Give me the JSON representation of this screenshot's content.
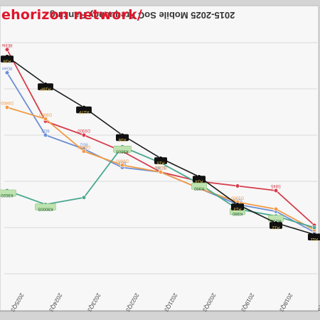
{
  "watermark": "ehorizon network/",
  "chart_data": {
    "type": "line",
    "title": "2015-2025 Mobile SoC Frequency Ranking",
    "categories": [
      "2025Q3",
      "2024Q3",
      "2023Q3",
      "2022Q3",
      "2021Q3",
      "2020Q3",
      "2019Q3",
      "2018Q3",
      "2017Q3"
    ],
    "ylim": [
      0,
      1
    ],
    "grid": true,
    "legend": "none",
    "series": [
      {
        "color": "#d63b4a",
        "values": [
          0.97,
          0.66,
          0.6,
          0.53,
          0.44,
          0.4,
          0.38,
          0.36,
          0.21
        ],
        "point_labels": [
          "8Elite",
          "",
          "D9300",
          "",
          "",
          "",
          "",
          "S845",
          ""
        ]
      },
      {
        "color": "#6c8fd4",
        "values": [
          0.87,
          0.6,
          0.54,
          0.46,
          0.44,
          0.37,
          0.3,
          0.27,
          0.18
        ],
        "point_labels": [
          "8Gen",
          "8G2",
          "8G2",
          "8G1",
          "SD88",
          "",
          "S855",
          "",
          ""
        ]
      },
      {
        "color": "#f29b45",
        "values": [
          0.72,
          0.67,
          0.53,
          0.47,
          0.44,
          0.37,
          0.31,
          0.28,
          0.19
        ],
        "point_labels": [
          "D9400",
          "D9000",
          "D9000",
          "D9000",
          "D1200",
          "",
          "D1000",
          "",
          ""
        ]
      },
      {
        "color": "#4aa88f",
        "values": [
          0.36,
          0.3,
          0.33,
          0.55,
          0.48,
          0.39,
          0.28,
          0.25,
          0.2
        ],
        "point_labels": [
          "K9020",
          "K9000S",
          "",
          "K9000",
          "",
          "K990",
          "K980",
          "K960",
          ""
        ]
      },
      {
        "color": "#1a1a1a",
        "values": [
          0.94,
          0.82,
          0.72,
          0.6,
          0.5,
          0.42,
          0.3,
          0.22,
          0.17
        ],
        "point_labels": [
          "A18",
          "A18P",
          "A17P",
          "A16",
          "A15",
          "A14",
          "A13",
          "A12",
          "A11"
        ]
      }
    ]
  }
}
